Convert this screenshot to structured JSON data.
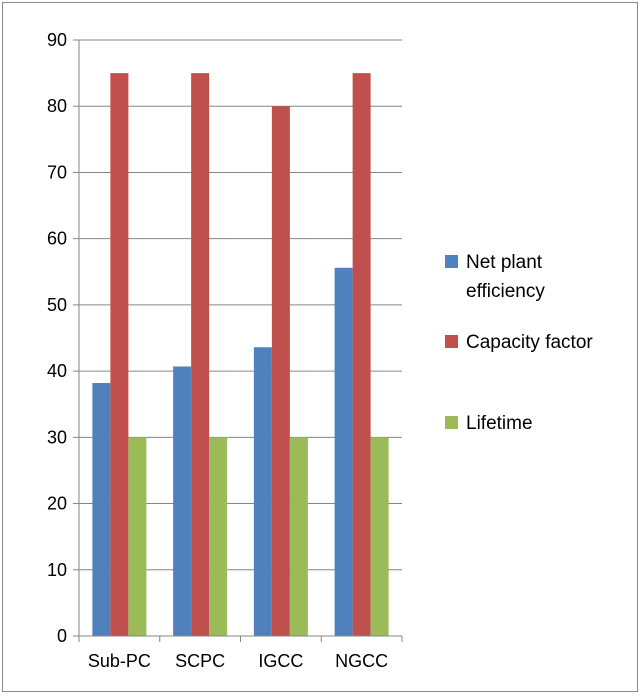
{
  "chart_data": {
    "type": "bar",
    "categories": [
      "Sub-PC",
      "SCPC",
      "IGCC",
      "NGCC"
    ],
    "series": [
      {
        "name": "Net plant efficiency",
        "color": "#4F81BD",
        "values": [
          38.2,
          40.7,
          43.6,
          55.6
        ]
      },
      {
        "name": "Capacity factor",
        "color": "#C0504D",
        "values": [
          85,
          85,
          80,
          85
        ]
      },
      {
        "name": "Lifetime",
        "color": "#9BBB59",
        "values": [
          30,
          30,
          30,
          30
        ]
      }
    ],
    "legend_lines": [
      [
        "Net plant",
        "efficiency"
      ],
      [
        "Capacity factor"
      ],
      [
        "Lifetime"
      ]
    ],
    "y_ticks": [
      "0",
      "10",
      "20",
      "30",
      "40",
      "50",
      "60",
      "70",
      "80",
      "90"
    ],
    "ylim": [
      0,
      90
    ],
    "grid": true,
    "legend_position": "right",
    "title": "",
    "xlabel": "",
    "ylabel": ""
  }
}
